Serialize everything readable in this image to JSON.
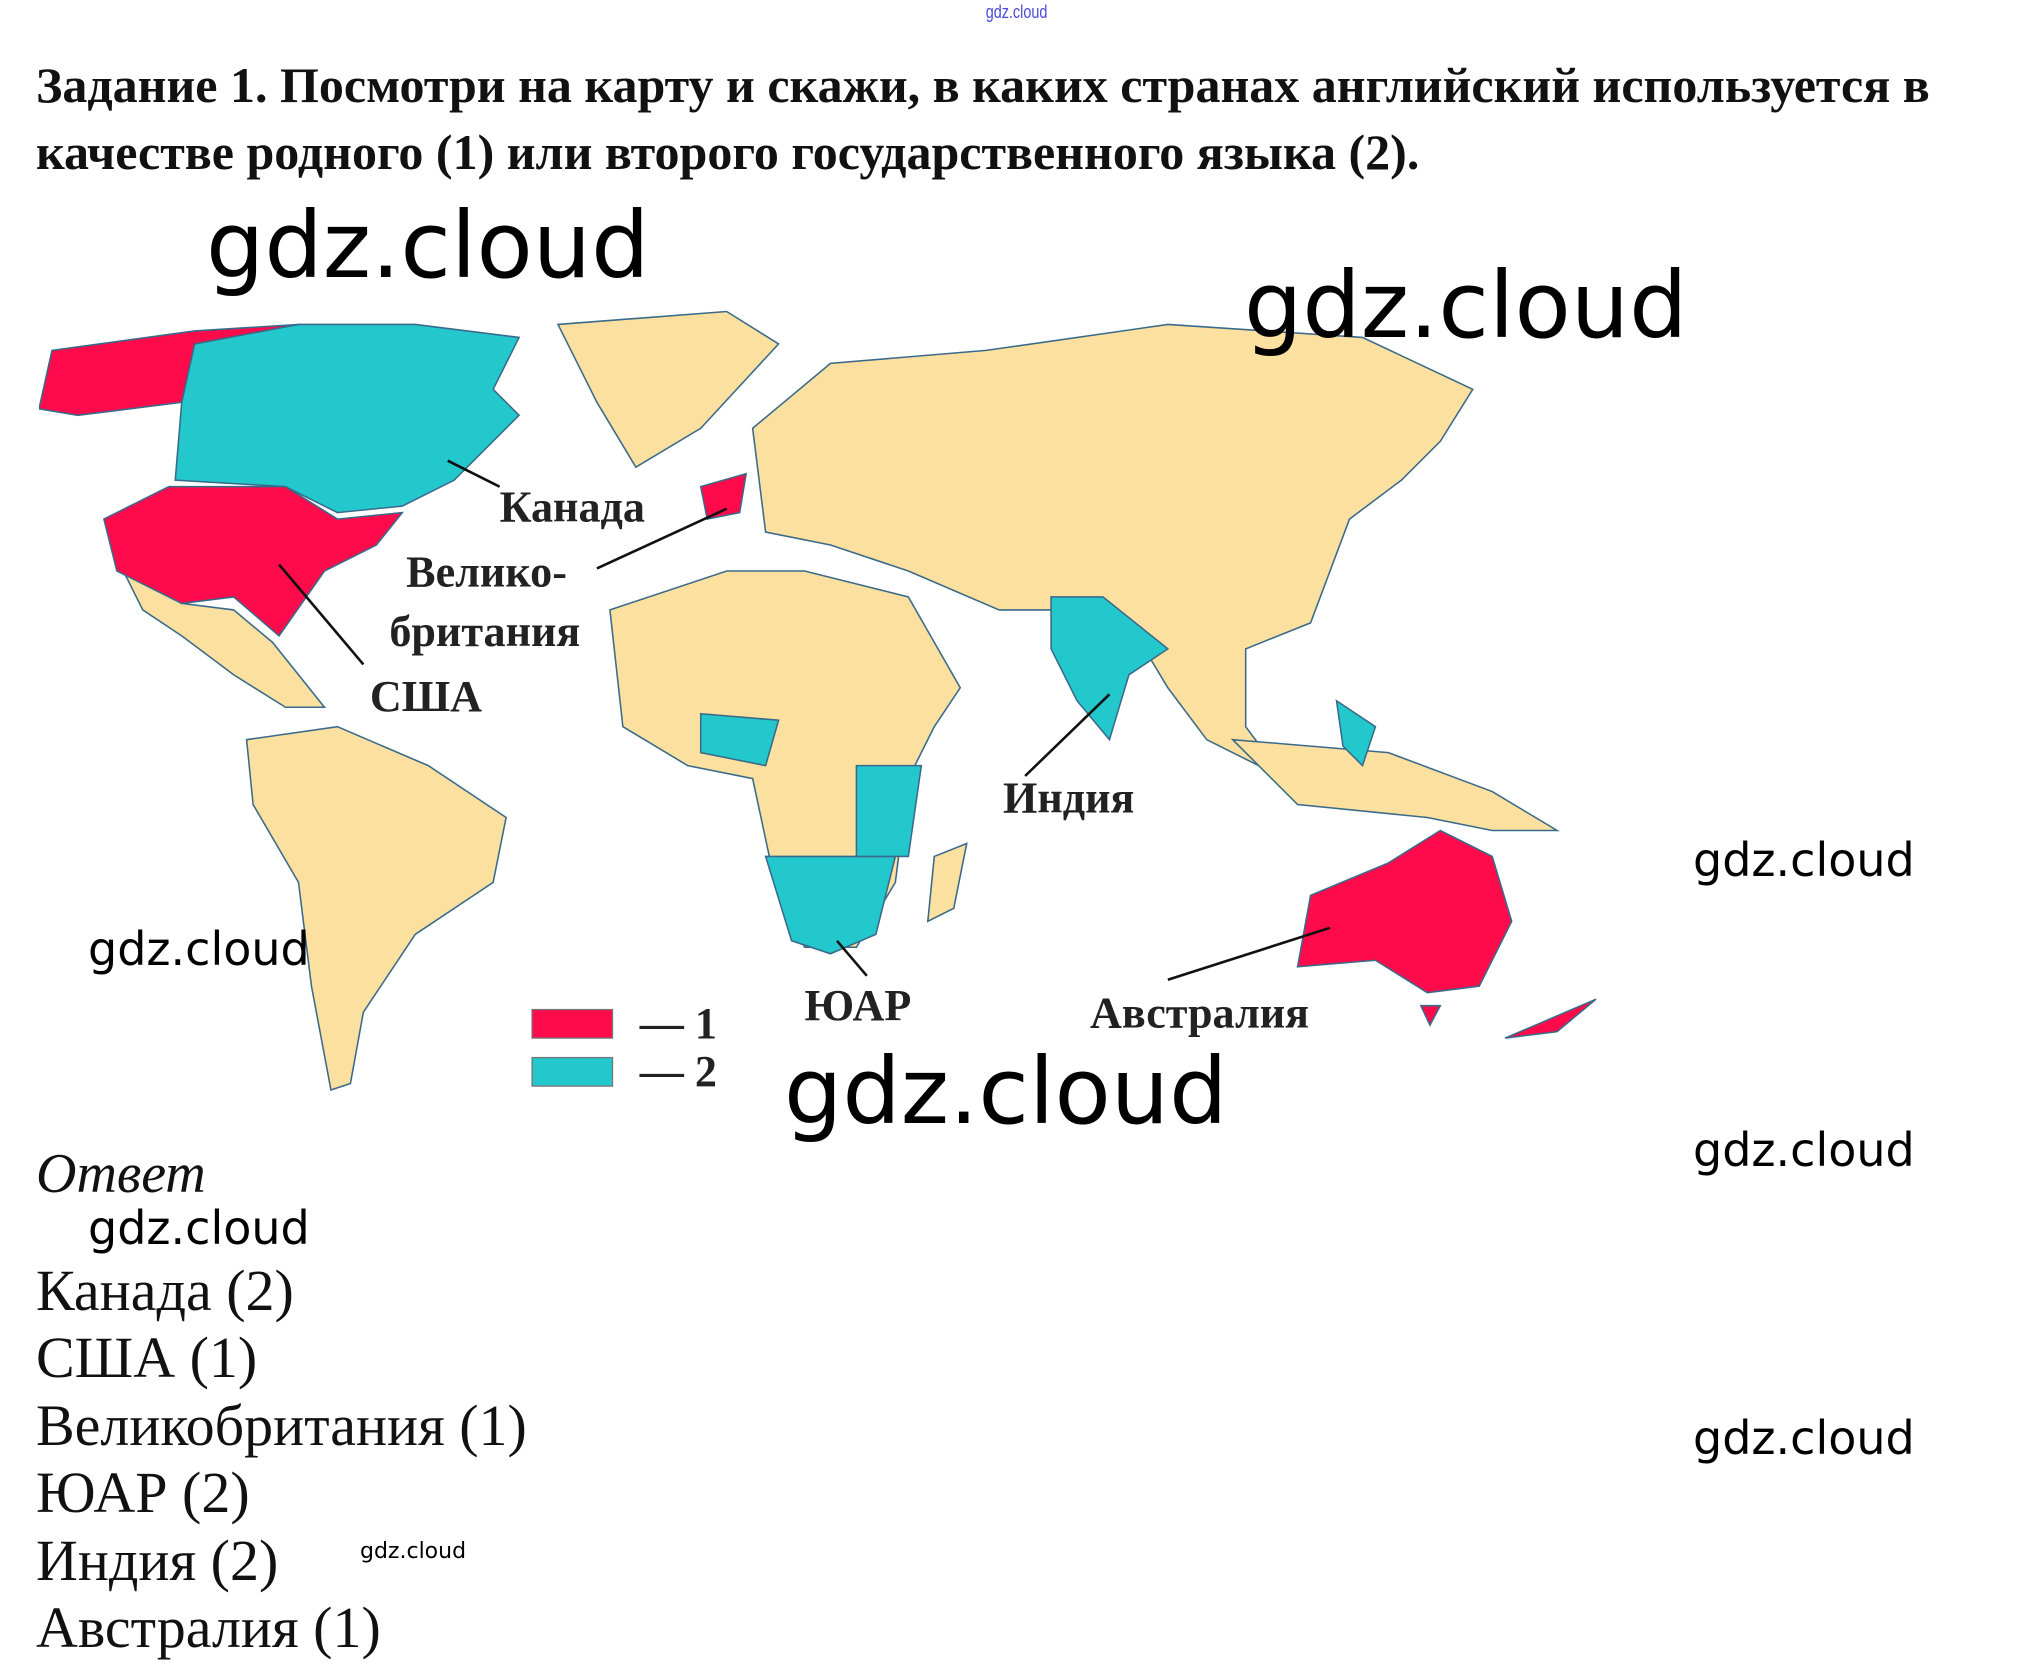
{
  "watermark": "gdz.cloud",
  "header_watermark": "gdz.cloud",
  "task": {
    "title": "Задание 1. Посмотри на карту и скажи, в каких странах английский используется в качестве родного (1) или второго государственного языка (2)."
  },
  "map": {
    "labels": {
      "canada": "Канада",
      "uk_line1": "Велико-",
      "uk_line2": "британия",
      "usa": "США",
      "india": "Индия",
      "south_africa": "ЮАР",
      "australia": "Австралия"
    },
    "legend": [
      {
        "label": "— 1",
        "color": "#ff0a4a"
      },
      {
        "label": "— 2",
        "color": "#22c8cc"
      }
    ],
    "colors": {
      "native": "#ff0a4a",
      "second": "#22c8cc",
      "other": "#fce0a0",
      "border": "#3a6a8a"
    }
  },
  "answer": {
    "heading": "Ответ",
    "lines": [
      "Канада (2)",
      "США (1)",
      "Великобритания (1)",
      "ЮАР (2)",
      "Индия (2)",
      "Австралия (1)"
    ]
  }
}
